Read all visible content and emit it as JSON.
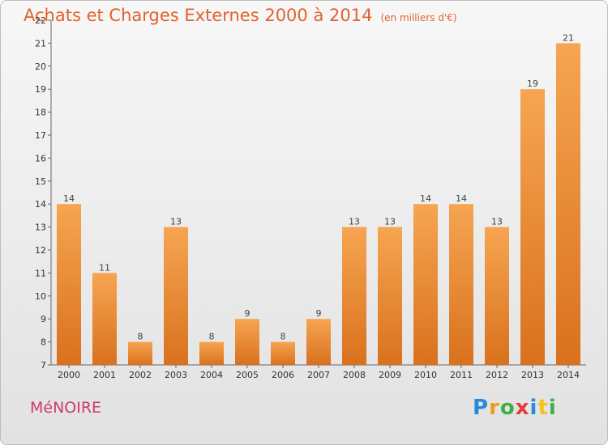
{
  "header": {
    "title": "Achats et Charges Externes 2000 à 2014",
    "unit": "(en milliers d'€)"
  },
  "footer": {
    "city": "MéNOIRE",
    "logo": {
      "letters": [
        "P",
        "r",
        "o",
        "x",
        "i",
        "t",
        "i"
      ],
      "colors": [
        "#2a8ad6",
        "#f29a1f",
        "#3fae49",
        "#e23b3b",
        "#2a8ad6",
        "#f2c318",
        "#3fae49"
      ]
    }
  },
  "colors": {
    "bar_top": "#f6a552",
    "bar_bottom": "#d9711d",
    "title": "#e0632f",
    "city": "#cf3b67"
  },
  "chart_data": {
    "type": "bar",
    "title": "Achats et Charges Externes 2000 à 2014",
    "subtitle": "(en milliers d'€)",
    "categories": [
      "2000",
      "2001",
      "2002",
      "2003",
      "2004",
      "2005",
      "2006",
      "2007",
      "2008",
      "2009",
      "2010",
      "2011",
      "2012",
      "2013",
      "2014"
    ],
    "values": [
      14,
      11,
      8,
      13,
      8,
      9,
      8,
      9,
      13,
      13,
      14,
      14,
      13,
      19,
      21
    ],
    "ylim": [
      7,
      22
    ],
    "yticks": [
      7,
      8,
      9,
      10,
      11,
      12,
      13,
      14,
      15,
      16,
      17,
      18,
      19,
      20,
      21,
      22
    ],
    "grid": false,
    "data_labels": true
  }
}
